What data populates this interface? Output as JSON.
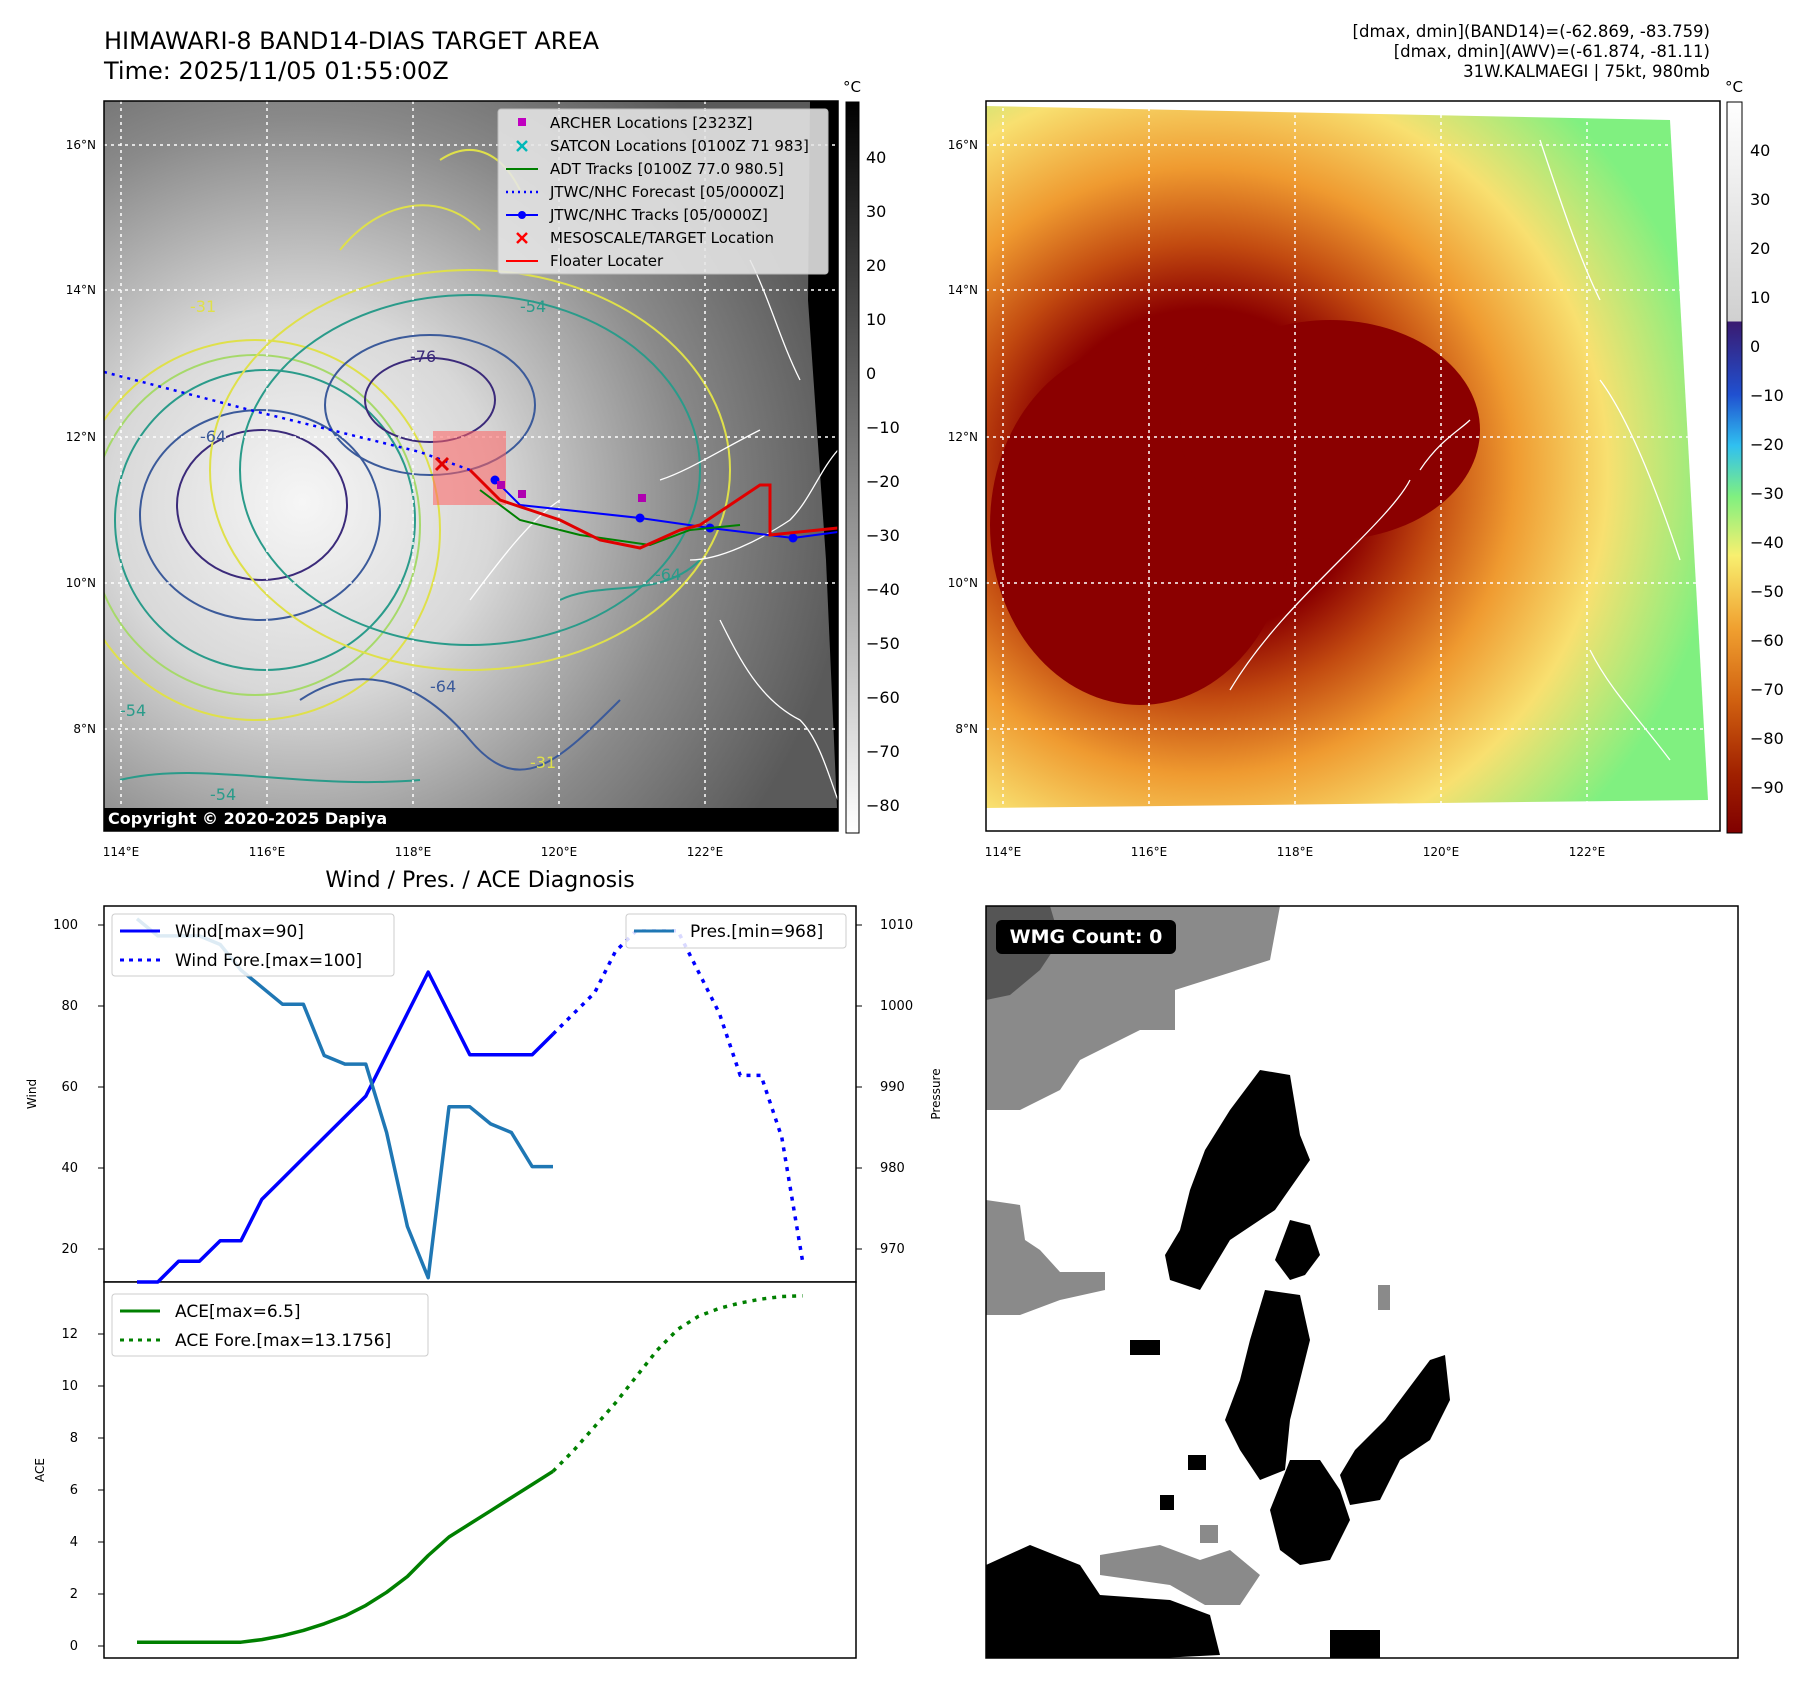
{
  "header": {
    "title_line1": "HIMAWARI-8 BAND14-DIAS TARGET AREA",
    "title_line2": "Time: 2025/11/05 01:55:00Z",
    "info_line1": "[dmax, dmin](BAND14)=(-62.869, -83.759)",
    "info_line2": "[dmax, dmin](AWV)=(-61.874, -81.11)",
    "info_line3": "31W.KALMAEGI | 75kt, 980mb"
  },
  "map_ir": {
    "lat_ticks": [
      "16°N",
      "14°N",
      "12°N",
      "10°N",
      "8°N"
    ],
    "lon_ticks": [
      "114°E",
      "116°E",
      "118°E",
      "120°E",
      "122°E"
    ],
    "colorbar_unit": "°C",
    "colorbar_ticks": [
      "40",
      "30",
      "20",
      "10",
      "0",
      "−10",
      "−20",
      "−30",
      "−40",
      "−50",
      "−60",
      "−70",
      "−80"
    ],
    "contour_labels": [
      "-31",
      "-54",
      "-64",
      "-76",
      "-64",
      "-64",
      "-54",
      "-54",
      "-31"
    ],
    "copyright": "Copyright © 2020-2025 Dapiya",
    "legend": [
      {
        "label": "ARCHER Locations [2323Z]",
        "color": "#c000c0",
        "marker": "square"
      },
      {
        "label": "SATCON Locations [0100Z 71 983]",
        "color": "#00b8b8",
        "marker": "x"
      },
      {
        "label": "ADT Tracks [0100Z 77.0 980.5]",
        "color": "#008000",
        "marker": "line"
      },
      {
        "label": "JTWC/NHC Forecast [05/0000Z]",
        "color": "#0000ff",
        "marker": "dotted"
      },
      {
        "label": "JTWC/NHC Tracks [05/0000Z]",
        "color": "#0000ff",
        "marker": "line-dot"
      },
      {
        "label": "MESOSCALE/TARGET Location",
        "color": "#ff0000",
        "marker": "x"
      },
      {
        "label": "Floater Locater",
        "color": "#ff0000",
        "marker": "line"
      }
    ]
  },
  "map_awv": {
    "lat_ticks": [
      "16°N",
      "14°N",
      "12°N",
      "10°N",
      "8°N"
    ],
    "lon_ticks": [
      "114°E",
      "116°E",
      "118°E",
      "120°E",
      "122°E"
    ],
    "colorbar_unit": "°C",
    "colorbar_ticks": [
      "40",
      "30",
      "20",
      "10",
      "0",
      "−10",
      "−20",
      "−30",
      "−40",
      "−50",
      "−60",
      "−70",
      "−80",
      "−90"
    ]
  },
  "diag": {
    "title": "Wind / Pres. / ACE Diagnosis",
    "wind_axis_label": "Wind",
    "pres_axis_label": "Pressure",
    "ace_axis_label": "ACE",
    "wind_ticks": [
      "100",
      "80",
      "60",
      "40",
      "20"
    ],
    "pres_ticks": [
      "1010",
      "1000",
      "990",
      "980",
      "970"
    ],
    "ace_ticks": [
      "12",
      "10",
      "8",
      "6",
      "4",
      "2",
      "0"
    ],
    "legend_wind": "Wind[max=90]",
    "legend_wind_fore": "Wind Fore.[max=100]",
    "legend_pres": "Pres.[min=968]",
    "legend_ace": "ACE[max=6.5]",
    "legend_ace_fore": "ACE Fore.[max=13.1756]"
  },
  "wmg": {
    "badge": "WMG Count: 0"
  },
  "chart_data": [
    {
      "type": "line",
      "title": "Wind / Pres. / ACE Diagnosis",
      "ylabel": "Wind",
      "ylim": [
        15,
        106
      ],
      "series": [
        {
          "name": "Wind[max=90]",
          "x": [
            0,
            1,
            2,
            3,
            4,
            5,
            6,
            7,
            8,
            9,
            10,
            11,
            12,
            13,
            14,
            15,
            16,
            17,
            18,
            19,
            20
          ],
          "values": [
            15,
            15,
            20,
            20,
            25,
            25,
            35,
            40,
            45,
            50,
            55,
            60,
            70,
            80,
            90,
            80,
            70,
            70,
            70,
            70,
            75
          ],
          "color": "#0000ff",
          "style": "solid"
        },
        {
          "name": "Wind Fore.[max=100]",
          "x": [
            20,
            21,
            22,
            23,
            24,
            25,
            26,
            27,
            28,
            29,
            30,
            31,
            32
          ],
          "values": [
            75,
            80,
            85,
            95,
            100,
            100,
            100,
            90,
            80,
            65,
            65,
            50,
            20
          ],
          "color": "#0000ff",
          "style": "dotted"
        }
      ]
    },
    {
      "type": "line",
      "ylabel": "Pressure",
      "ylim": [
        967.5,
        1011.5
      ],
      "series": [
        {
          "name": "Pres.[min=968]",
          "x": [
            0,
            1,
            2,
            3,
            4,
            5,
            6,
            7,
            8,
            9,
            10,
            11,
            12,
            13,
            14,
            15,
            16,
            17,
            18,
            19,
            20
          ],
          "values": [
            1010,
            1008,
            1008,
            1008,
            1007,
            1004,
            1002,
            1000,
            1000,
            994,
            993,
            993,
            985,
            974,
            968,
            988,
            988,
            986,
            985,
            981,
            981
          ],
          "color": "#1f77b4",
          "style": "solid"
        }
      ]
    },
    {
      "type": "line",
      "ylabel": "ACE",
      "ylim": [
        -0.6,
        13.7
      ],
      "series": [
        {
          "name": "ACE[max=6.5]",
          "x": [
            0,
            1,
            2,
            3,
            4,
            5,
            6,
            7,
            8,
            9,
            10,
            11,
            12,
            13,
            14,
            15,
            16,
            17,
            18,
            19,
            20
          ],
          "values": [
            0,
            0,
            0,
            0,
            0,
            0,
            0.1,
            0.25,
            0.45,
            0.7,
            1.0,
            1.4,
            1.9,
            2.5,
            3.3,
            4.0,
            4.5,
            5.0,
            5.5,
            6.0,
            6.5
          ],
          "color": "#008000",
          "style": "solid"
        },
        {
          "name": "ACE Fore.[max=13.1756]",
          "x": [
            20,
            21,
            22,
            23,
            24,
            25,
            26,
            27,
            28,
            29,
            30,
            31,
            32
          ],
          "values": [
            6.5,
            7.3,
            8.2,
            9.1,
            10.1,
            11.1,
            11.9,
            12.4,
            12.7,
            12.9,
            13.05,
            13.15,
            13.1756
          ],
          "color": "#008000",
          "style": "dotted"
        }
      ]
    }
  ]
}
